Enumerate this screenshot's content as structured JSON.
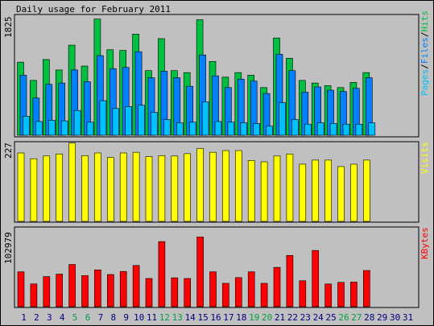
{
  "title": "Daily usage for February 2011",
  "colors": {
    "background": "#c0c0c0",
    "hits": "#00c040",
    "files": "#0080ff",
    "pages": "#00c0ff",
    "visits": "#ffff00",
    "kbytes": "#ff0000",
    "weekday_label": "#000080",
    "weekend_label": "#00a040"
  },
  "x_labels": [
    "1",
    "2",
    "3",
    "4",
    "5",
    "6",
    "7",
    "8",
    "9",
    "10",
    "11",
    "12",
    "13",
    "14",
    "15",
    "16",
    "17",
    "18",
    "19",
    "20",
    "21",
    "22",
    "23",
    "24",
    "25",
    "26",
    "27",
    "28",
    "29",
    "30",
    "31"
  ],
  "weekend_days": [
    5,
    6,
    12,
    13,
    19,
    20,
    26,
    27
  ],
  "chart_data": [
    {
      "type": "bar",
      "panel": "top",
      "ytick_label": "1825",
      "ylim": [
        0,
        1825
      ],
      "legend": [
        "Pages",
        "Files",
        "Hits"
      ],
      "categories": [
        1,
        2,
        3,
        4,
        5,
        6,
        7,
        8,
        9,
        10,
        11,
        12,
        13,
        14,
        15,
        16,
        17,
        18,
        19,
        20,
        21,
        22,
        23,
        24,
        25,
        26,
        27,
        28
      ],
      "series": [
        {
          "name": "Hits",
          "values": [
            1120,
            840,
            1160,
            1000,
            1380,
            1060,
            1780,
            1310,
            1300,
            1550,
            990,
            1480,
            990,
            960,
            1770,
            1130,
            890,
            960,
            920,
            730,
            1490,
            1180,
            840,
            800,
            760,
            730,
            810,
            960
          ]
        },
        {
          "name": "Files",
          "values": [
            920,
            570,
            780,
            800,
            1000,
            820,
            1220,
            1020,
            1040,
            1280,
            880,
            980,
            880,
            750,
            1230,
            910,
            730,
            860,
            830,
            640,
            1240,
            990,
            660,
            740,
            690,
            670,
            720,
            880
          ]
        },
        {
          "name": "Pages",
          "values": [
            290,
            210,
            230,
            220,
            380,
            200,
            530,
            410,
            440,
            460,
            350,
            240,
            190,
            200,
            510,
            210,
            200,
            190,
            180,
            140,
            500,
            240,
            170,
            190,
            180,
            170,
            170,
            190
          ]
        }
      ]
    },
    {
      "type": "bar",
      "panel": "middle",
      "ytick_label": "227",
      "ylim": [
        0,
        227
      ],
      "legend": [
        "Visits"
      ],
      "categories": [
        1,
        2,
        3,
        4,
        5,
        6,
        7,
        8,
        9,
        10,
        11,
        12,
        13,
        14,
        15,
        16,
        17,
        18,
        19,
        20,
        21,
        22,
        23,
        24,
        25,
        26,
        27,
        28
      ],
      "series": [
        {
          "name": "Visits",
          "values": [
            201,
            184,
            192,
            198,
            230,
            193,
            201,
            188,
            201,
            203,
            190,
            193,
            192,
            199,
            214,
            203,
            208,
            208,
            179,
            175,
            192,
            198,
            168,
            180,
            180,
            161,
            168,
            180
          ]
        }
      ]
    },
    {
      "type": "bar",
      "panel": "bottom",
      "ytick_label": "102979",
      "ylim": [
        0,
        102979
      ],
      "legend": [
        "KBytes"
      ],
      "categories": [
        1,
        2,
        3,
        4,
        5,
        6,
        7,
        8,
        9,
        10,
        11,
        12,
        13,
        14,
        15,
        16,
        17,
        18,
        19,
        20,
        21,
        22,
        23,
        24,
        25,
        26,
        27,
        28
      ],
      "series": [
        {
          "name": "KBytes",
          "values": [
            47500,
            31000,
            41000,
            44300,
            57500,
            42300,
            50100,
            43800,
            48000,
            56100,
            38400,
            88600,
            39300,
            38400,
            94900,
            47500,
            31800,
            39600,
            47500,
            31800,
            53500,
            69800,
            35300,
            76500,
            30900,
            33100,
            33500,
            49300
          ]
        }
      ]
    }
  ],
  "legend_text": {
    "pages": "Pages",
    "files": "Files",
    "hits": "Hits",
    "visits": "Visits",
    "kbytes": "KBytes",
    "sep": "/"
  }
}
